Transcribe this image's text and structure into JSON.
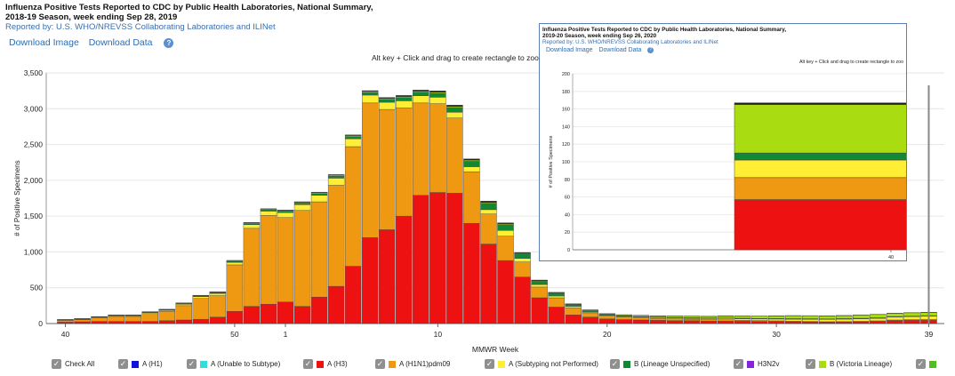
{
  "header": {
    "title_lines": [
      "Influenza Positive Tests Reported to CDC by Public Health Laboratories, National Summary,",
      "2018-19 Season, week ending Sep 28, 2019"
    ],
    "reported_by": "Reported by: U.S. WHO/NREVSS Collaborating Laboratories and ILINet",
    "download_image": "Download Image",
    "download_data": "Download Data",
    "help_icon": "?",
    "zoom_hint": "Alt key + Click and drag to create rectangle to zoom/C"
  },
  "colors": {
    "A (H3)": "#ee1111",
    "A (H1N1)pdm09": "#ee9911",
    "A (Subtyping not Performed)": "#ffee33",
    "B (Lineage Unspecified)": "#118833",
    "B (Victoria Lineage)": "#aadd11",
    "B (Yamagata Lineage)": "#222222",
    "A (H1)": "#1111dd",
    "A (Unable to Subtype)": "#33dddd",
    "H3N2v": "#8822dd"
  },
  "chart_data": [
    {
      "type": "bar",
      "stacked": true,
      "xlabel": "MMWR Week",
      "ylabel": "# of Positive Specimens",
      "ylim": [
        0,
        3500
      ],
      "yticks": [
        "0",
        "500",
        "1,000",
        "1,500",
        "2,000",
        "2,500",
        "3,000",
        "3,500"
      ],
      "x_tick_labels": [
        "40",
        "50",
        "1",
        "10",
        "20",
        "30",
        "39"
      ],
      "grid": true,
      "categories": [
        "40",
        "41",
        "42",
        "43",
        "44",
        "45",
        "46",
        "47",
        "48",
        "49",
        "50",
        "51",
        "52",
        "1",
        "2",
        "3",
        "4",
        "5",
        "6",
        "7",
        "8",
        "9",
        "10",
        "11",
        "12",
        "13",
        "14",
        "15",
        "16",
        "17",
        "18",
        "19",
        "20",
        "21",
        "22",
        "23",
        "24",
        "25",
        "26",
        "27",
        "28",
        "29",
        "30",
        "31",
        "32",
        "33",
        "34",
        "35",
        "36",
        "37",
        "38",
        "39"
      ],
      "series": [
        {
          "name": "A (H3)",
          "values": [
            20,
            25,
            30,
            30,
            30,
            30,
            40,
            50,
            60,
            90,
            170,
            240,
            270,
            300,
            240,
            370,
            520,
            800,
            1200,
            1310,
            1500,
            1790,
            1830,
            1820,
            1400,
            1110,
            880,
            650,
            360,
            230,
            120,
            90,
            65,
            55,
            50,
            45,
            40,
            40,
            35,
            35,
            32,
            30,
            28,
            25,
            22,
            20,
            22,
            25,
            30,
            40,
            45,
            45
          ]
        },
        {
          "name": "A (H1N1)pdm09",
          "values": [
            25,
            30,
            50,
            70,
            70,
            110,
            130,
            200,
            290,
            300,
            650,
            1090,
            1240,
            1180,
            1340,
            1330,
            1410,
            1670,
            1880,
            1680,
            1510,
            1290,
            1240,
            1050,
            720,
            420,
            340,
            210,
            150,
            130,
            100,
            60,
            40,
            35,
            30,
            28,
            25,
            22,
            20,
            18,
            15,
            12,
            10,
            8,
            8,
            6,
            5,
            6,
            8,
            10,
            10,
            12
          ]
        },
        {
          "name": "A (Subtyping not Performed)",
          "values": [
            5,
            6,
            8,
            10,
            10,
            12,
            15,
            20,
            25,
            30,
            35,
            50,
            60,
            70,
            80,
            90,
            100,
            110,
            110,
            100,
            100,
            100,
            90,
            80,
            70,
            60,
            80,
            50,
            35,
            25,
            18,
            12,
            10,
            10,
            10,
            10,
            12,
            12,
            15,
            18,
            20,
            22,
            25,
            28,
            30,
            32,
            35,
            35,
            35,
            40,
            42,
            45
          ]
        },
        {
          "name": "B (Lineage Unspecified)",
          "values": [
            3,
            4,
            5,
            5,
            5,
            6,
            7,
            8,
            10,
            12,
            14,
            16,
            18,
            20,
            22,
            25,
            28,
            30,
            35,
            40,
            45,
            50,
            55,
            65,
            75,
            90,
            80,
            60,
            45,
            35,
            25,
            15,
            10,
            8,
            8,
            8,
            8,
            8,
            8,
            8,
            8,
            8,
            8,
            8,
            8,
            8,
            8,
            8,
            8,
            8,
            8,
            8
          ]
        },
        {
          "name": "B (Victoria Lineage)",
          "values": [
            2,
            3,
            3,
            4,
            4,
            5,
            5,
            6,
            6,
            7,
            8,
            10,
            10,
            10,
            12,
            12,
            14,
            15,
            15,
            15,
            15,
            15,
            15,
            15,
            15,
            12,
            12,
            10,
            8,
            8,
            8,
            10,
            10,
            12,
            15,
            15,
            18,
            20,
            22,
            25,
            28,
            30,
            35,
            40,
            40,
            40,
            40,
            45,
            45,
            45,
            45,
            45
          ]
        },
        {
          "name": "B (Yamagata Lineage)",
          "values": [
            2,
            2,
            2,
            2,
            2,
            3,
            3,
            4,
            4,
            5,
            5,
            6,
            6,
            6,
            7,
            8,
            8,
            10,
            12,
            12,
            15,
            15,
            18,
            20,
            20,
            18,
            15,
            12,
            10,
            8,
            6,
            5,
            4,
            4,
            3,
            3,
            3,
            3,
            3,
            3,
            3,
            3,
            3,
            3,
            3,
            3,
            3,
            3,
            3,
            3,
            3,
            3
          ]
        }
      ]
    },
    {
      "type": "bar",
      "stacked": true,
      "title_lines": [
        "Influenza Positive Tests Reported to CDC by Public Health Laboratories, National Summary,",
        "2019-20 Season, week ending Sep 26, 2020"
      ],
      "reported_by": "Reported by: U.S. WHO/NREVSS Collaborating Laboratories and ILINet",
      "download_image": "Download Image",
      "download_data": "Download Data",
      "help_icon": "?",
      "zoom_hint": "Alt key + Click and drag to create rectangle to zoo",
      "ylabel": "# of Positive Specimens",
      "ylim": [
        0,
        200
      ],
      "yticks": [
        "0",
        "20",
        "40",
        "60",
        "80",
        "100",
        "120",
        "140",
        "160",
        "180",
        "200"
      ],
      "x_tick_labels": [
        "40"
      ],
      "grid": true,
      "categories": [
        "40"
      ],
      "series": [
        {
          "name": "A (H3)",
          "values": [
            57
          ]
        },
        {
          "name": "A (H1N1)pdm09",
          "values": [
            25
          ]
        },
        {
          "name": "A (Subtyping not Performed)",
          "values": [
            20
          ]
        },
        {
          "name": "B (Lineage Unspecified)",
          "values": [
            8
          ]
        },
        {
          "name": "B (Victoria Lineage)",
          "values": [
            55
          ]
        },
        {
          "name": "B (Yamagata Lineage)",
          "values": [
            2
          ]
        }
      ]
    }
  ],
  "legend": [
    {
      "label": "Check All",
      "color": null
    },
    {
      "label": "A (H1)",
      "color": "#1111dd"
    },
    {
      "label": "A (Unable to Subtype)",
      "color": "#33dddd"
    },
    {
      "label": "A (H3)",
      "color": "#ee1111"
    },
    {
      "label": "A (H1N1)pdm09",
      "color": "#ee9911"
    },
    {
      "label": "A (Subtyping not Performed)",
      "color": "#ffee33"
    },
    {
      "label": "B (Lineage Unspecified)",
      "color": "#118833"
    },
    {
      "label": "H3N2v",
      "color": "#8822dd"
    },
    {
      "label": "B (Victoria Lineage)",
      "color": "#aadd11"
    },
    {
      "label": "",
      "color": "#55bb22"
    }
  ]
}
